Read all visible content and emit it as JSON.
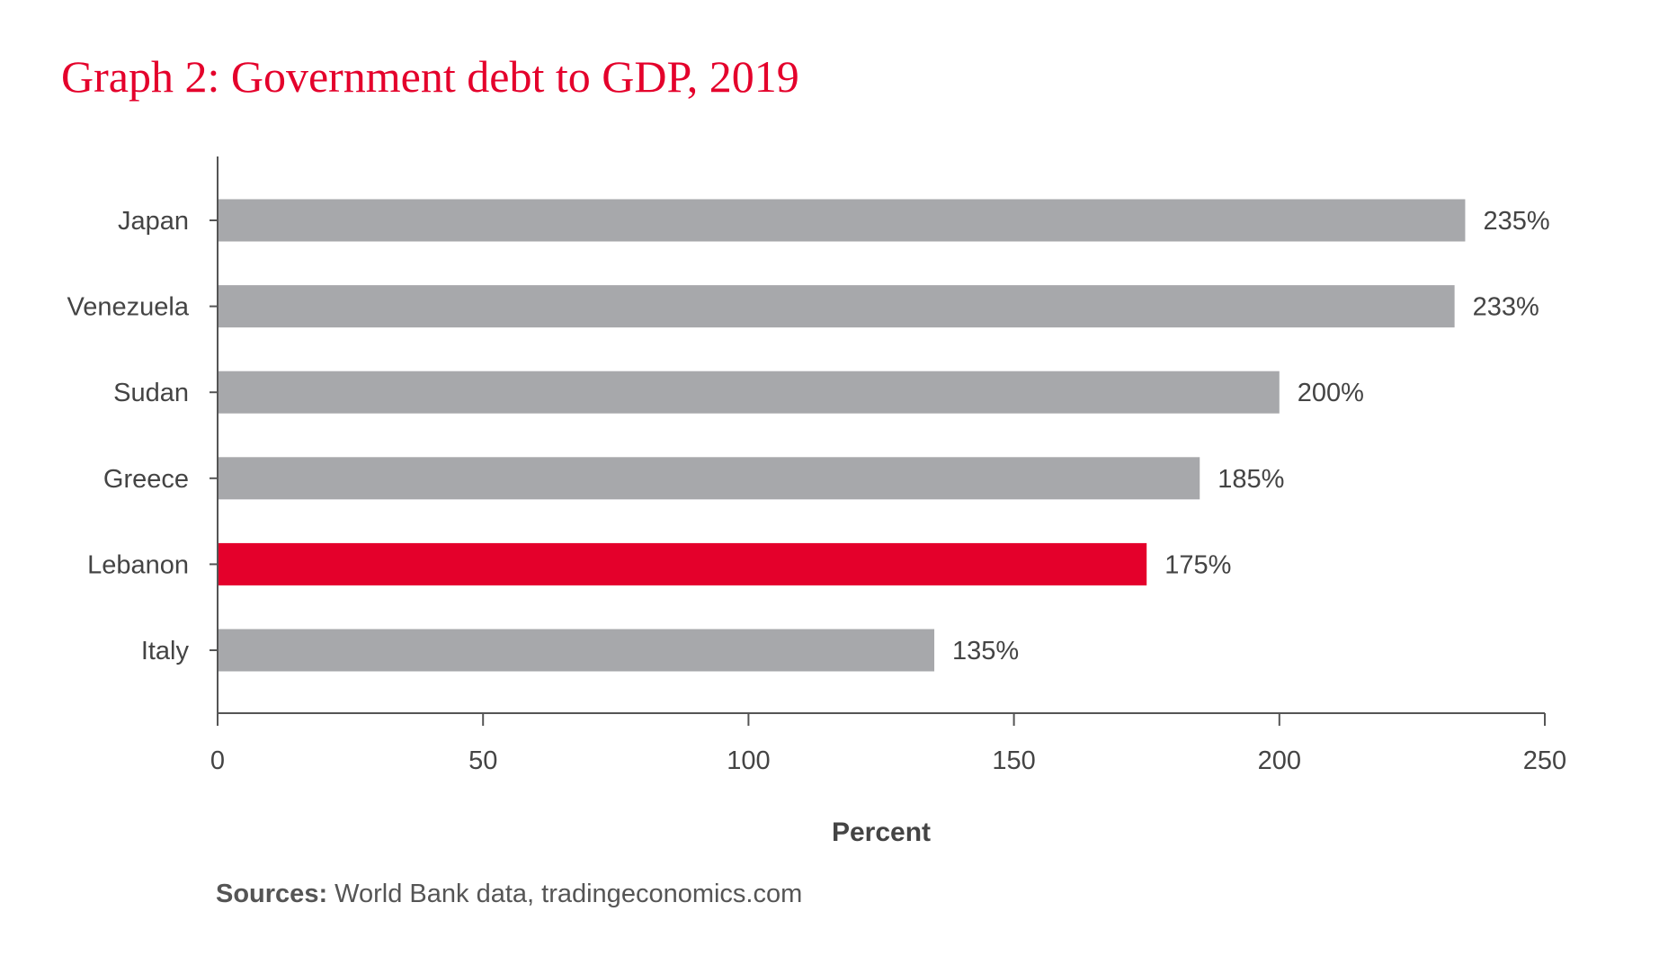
{
  "chart_data": {
    "type": "bar",
    "orientation": "horizontal",
    "title": "Graph 2: Government debt to GDP, 2019",
    "categories": [
      "Japan",
      "Venezuela",
      "Sudan",
      "Greece",
      "Lebanon",
      "Italy"
    ],
    "values": [
      235,
      233,
      200,
      185,
      175,
      135
    ],
    "data_labels": [
      "235%",
      "233%",
      "200%",
      "185%",
      "175%",
      "135%"
    ],
    "highlight_category": "Lebanon",
    "xlabel": "Percent",
    "ylabel": "",
    "xlim": [
      0,
      250
    ],
    "xticks": [
      0,
      50,
      100,
      150,
      200,
      250
    ],
    "xtick_labels": [
      "0",
      "50",
      "100",
      "150",
      "200",
      "250"
    ],
    "grid": false,
    "colors": {
      "bar": "#a7a8ab",
      "highlight": "#e4002b",
      "title": "#e4002b",
      "axis": "#555555",
      "text": "#444444"
    }
  },
  "footer": {
    "source_label": "Sources:",
    "source_text": " World Bank data, tradingeconomics.com"
  }
}
